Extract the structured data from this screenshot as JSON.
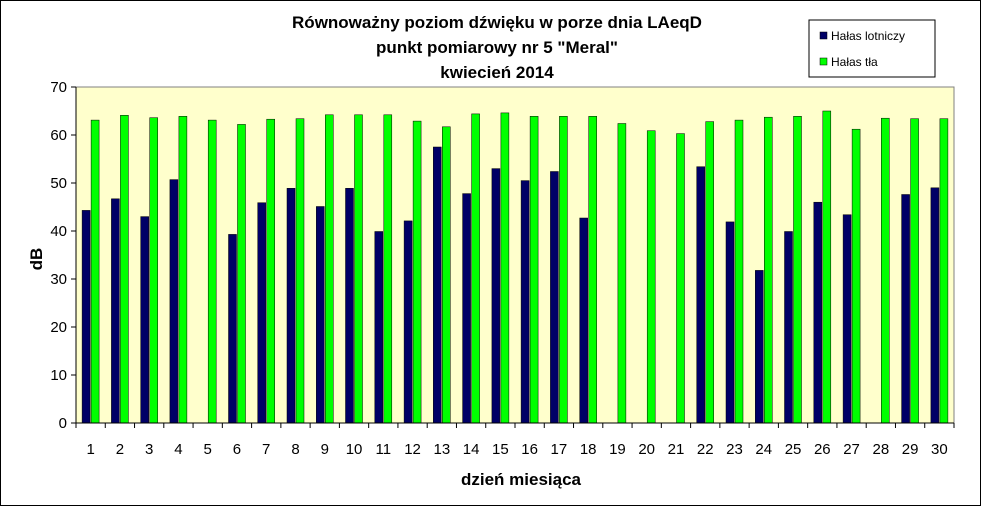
{
  "chart_data": {
    "type": "bar",
    "title_lines": [
      "Równoważny poziom dźwięku w porze dnia LAeqD",
      "punkt pomiarowy nr 5 \"Meral\"",
      "kwiecień 2014"
    ],
    "xlabel": "dzień miesiąca",
    "ylabel": "dB",
    "ylim": [
      0,
      70
    ],
    "yticks": [
      0,
      10,
      20,
      30,
      40,
      50,
      60,
      70
    ],
    "grid": false,
    "legend_position": "top-right",
    "plot_background": "#FFFFCC",
    "categories": [
      "1",
      "2",
      "3",
      "4",
      "5",
      "6",
      "7",
      "8",
      "9",
      "10",
      "11",
      "12",
      "13",
      "14",
      "15",
      "16",
      "17",
      "18",
      "19",
      "20",
      "21",
      "22",
      "23",
      "24",
      "25",
      "26",
      "27",
      "28",
      "29",
      "30"
    ],
    "series": [
      {
        "name": "Hałas lotniczy",
        "color": "#000066",
        "values": [
          44.3,
          46.7,
          43.0,
          50.7,
          null,
          39.3,
          45.9,
          48.9,
          45.1,
          48.9,
          39.9,
          42.1,
          57.5,
          47.8,
          53.0,
          50.5,
          52.4,
          42.7,
          null,
          null,
          null,
          53.4,
          41.9,
          31.8,
          39.9,
          46.0,
          43.4,
          null,
          47.6,
          49.0
        ]
      },
      {
        "name": "Hałas tła",
        "color": "#00FF00",
        "values": [
          63.1,
          64.1,
          63.6,
          63.9,
          63.1,
          62.2,
          63.3,
          63.4,
          64.2,
          64.2,
          64.2,
          62.9,
          61.7,
          64.4,
          64.6,
          63.9,
          63.9,
          63.9,
          62.4,
          60.9,
          60.3,
          62.8,
          63.1,
          63.7,
          63.9,
          65.0,
          61.2,
          63.5,
          63.4,
          63.4
        ]
      }
    ]
  }
}
